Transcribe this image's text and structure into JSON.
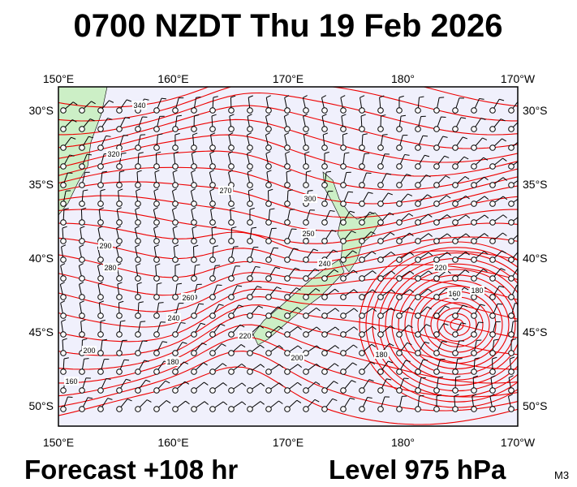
{
  "title": "0700 NZDT Thu 19 Feb 2026",
  "footer": {
    "forecast": "Forecast +108 hr",
    "level": "Level 975 hPa",
    "model": "M3"
  },
  "axes": {
    "longitude_labels": [
      "150°E",
      "160°E",
      "170°E",
      "180°",
      "170°W"
    ],
    "latitude_labels": [
      "30°S",
      "35°S",
      "40°S",
      "45°S",
      "50°S"
    ]
  },
  "contour_labels": [
    "340",
    "320",
    "270",
    "300",
    "250",
    "290",
    "280",
    "260",
    "240",
    "220",
    "200",
    "180",
    "160",
    "220",
    "160",
    "180",
    "180",
    "200",
    "240"
  ]
}
